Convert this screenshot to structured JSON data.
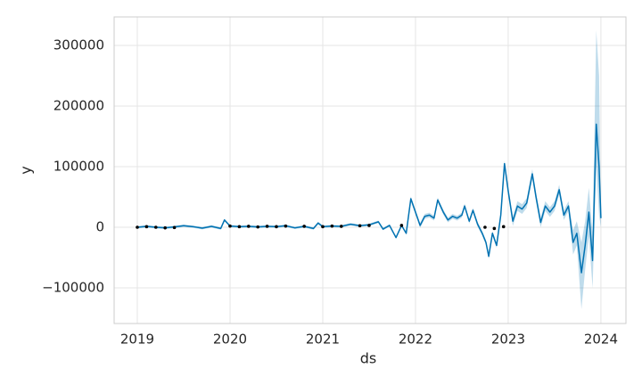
{
  "chart_data": {
    "type": "line",
    "xlabel": "ds",
    "ylabel": "y",
    "x": [
      2019.0,
      2019.1,
      2019.2,
      2019.3,
      2019.4,
      2019.5,
      2019.6,
      2019.7,
      2019.8,
      2019.9,
      2019.94,
      2020.0,
      2020.1,
      2020.2,
      2020.3,
      2020.4,
      2020.5,
      2020.6,
      2020.7,
      2020.8,
      2020.9,
      2020.95,
      2021.0,
      2021.1,
      2021.2,
      2021.3,
      2021.4,
      2021.5,
      2021.6,
      2021.65,
      2021.72,
      2021.79,
      2021.85,
      2021.9,
      2021.95,
      2022.0,
      2022.05,
      2022.1,
      2022.15,
      2022.2,
      2022.24,
      2022.3,
      2022.35,
      2022.4,
      2022.45,
      2022.5,
      2022.53,
      2022.58,
      2022.62,
      2022.67,
      2022.72,
      2022.76,
      2022.79,
      2022.83,
      2022.875,
      2022.92,
      2022.96,
      2023.0,
      2023.05,
      2023.1,
      2023.15,
      2023.2,
      2023.26,
      2023.3,
      2023.35,
      2023.4,
      2023.45,
      2023.5,
      2023.55,
      2023.6,
      2023.65,
      2023.7,
      2023.74,
      2023.79,
      2023.83,
      2023.87,
      2023.91,
      2023.95,
      2023.98,
      2024.0
    ],
    "series": [
      {
        "color": "#0072B2",
        "values": [
          0,
          1500,
          0,
          -1000,
          500,
          2500,
          1000,
          -1500,
          1500,
          -2000,
          12000,
          2000,
          1000,
          1500,
          500,
          1500,
          1000,
          2500,
          -1000,
          1500,
          -2000,
          7000,
          1000,
          2000,
          1500,
          5000,
          2500,
          4000,
          9000,
          -3000,
          3000,
          -17000,
          3000,
          -10000,
          47000,
          25000,
          3000,
          18000,
          20000,
          15000,
          45000,
          25000,
          12000,
          18000,
          15000,
          20000,
          35000,
          10000,
          28000,
          5000,
          -10000,
          -25000,
          -48000,
          -10000,
          -30000,
          20000,
          105000,
          60000,
          10000,
          35000,
          30000,
          40000,
          88000,
          50000,
          8000,
          35000,
          25000,
          35000,
          62000,
          20000,
          35000,
          -25000,
          -10000,
          -75000,
          -30000,
          25000,
          -55000,
          170000,
          100000,
          15000
        ]
      }
    ],
    "band": {
      "color": "#0072B2",
      "lower": [
        -2000,
        -500,
        -2000,
        -3000,
        -1500,
        500,
        -1000,
        -3500,
        -500,
        -4000,
        10000,
        0,
        -1000,
        -500,
        -1500,
        -500,
        -1000,
        500,
        -3000,
        -500,
        -4000,
        5000,
        -1000,
        0,
        -500,
        3000,
        500,
        2000,
        7000,
        -5000,
        1000,
        -19000,
        1000,
        -12000,
        43000,
        21000,
        -1000,
        14000,
        16000,
        11000,
        41000,
        21000,
        8000,
        14000,
        11000,
        16000,
        31000,
        6000,
        24000,
        1000,
        -14000,
        -29000,
        -52000,
        -14000,
        -34000,
        16000,
        100000,
        52000,
        2000,
        27000,
        22000,
        32000,
        80000,
        42000,
        0,
        27000,
        17000,
        27000,
        54000,
        12000,
        27000,
        -45000,
        -30000,
        -135000,
        -70000,
        -15000,
        -100000,
        100000,
        20000,
        0
      ],
      "upper": [
        2000,
        3500,
        2000,
        1000,
        2500,
        4500,
        3000,
        500,
        3500,
        0,
        14000,
        4000,
        3000,
        3500,
        2500,
        3500,
        3000,
        4500,
        1000,
        3500,
        0,
        9000,
        3000,
        4000,
        3500,
        7000,
        4500,
        6000,
        11000,
        -1000,
        5000,
        -15000,
        5000,
        -8000,
        51000,
        29000,
        7000,
        22000,
        24000,
        19000,
        49000,
        29000,
        16000,
        22000,
        19000,
        24000,
        39000,
        14000,
        32000,
        9000,
        -6000,
        -21000,
        -44000,
        -6000,
        -26000,
        24000,
        110000,
        68000,
        18000,
        43000,
        38000,
        48000,
        96000,
        58000,
        16000,
        43000,
        33000,
        43000,
        70000,
        28000,
        43000,
        -5000,
        10000,
        -25000,
        10000,
        65000,
        -10000,
        325000,
        250000,
        30000
      ]
    },
    "points": {
      "color": "#000000",
      "x": [
        2019.0,
        2019.1,
        2019.2,
        2019.3,
        2019.4,
        2020.0,
        2020.1,
        2020.2,
        2020.3,
        2020.4,
        2020.5,
        2020.6,
        2020.8,
        2021.0,
        2021.1,
        2021.2,
        2021.4,
        2021.5,
        2021.85,
        2022.75,
        2022.85,
        2022.95
      ],
      "values": [
        0,
        1000,
        0,
        -1000,
        -500,
        2000,
        1000,
        1500,
        500,
        1500,
        1000,
        2000,
        1500,
        1000,
        2000,
        1500,
        2500,
        3000,
        3000,
        0,
        -2000,
        1000
      ]
    },
    "xlim": [
      2018.75,
      2024.27
    ],
    "ylim": [
      -158800,
      347000
    ],
    "xticks": [
      2019,
      2020,
      2021,
      2022,
      2023,
      2024
    ],
    "yticks": [
      {
        "value": -100000,
        "label": "−100000"
      },
      0,
      100000,
      200000,
      300000
    ],
    "grid": true
  }
}
